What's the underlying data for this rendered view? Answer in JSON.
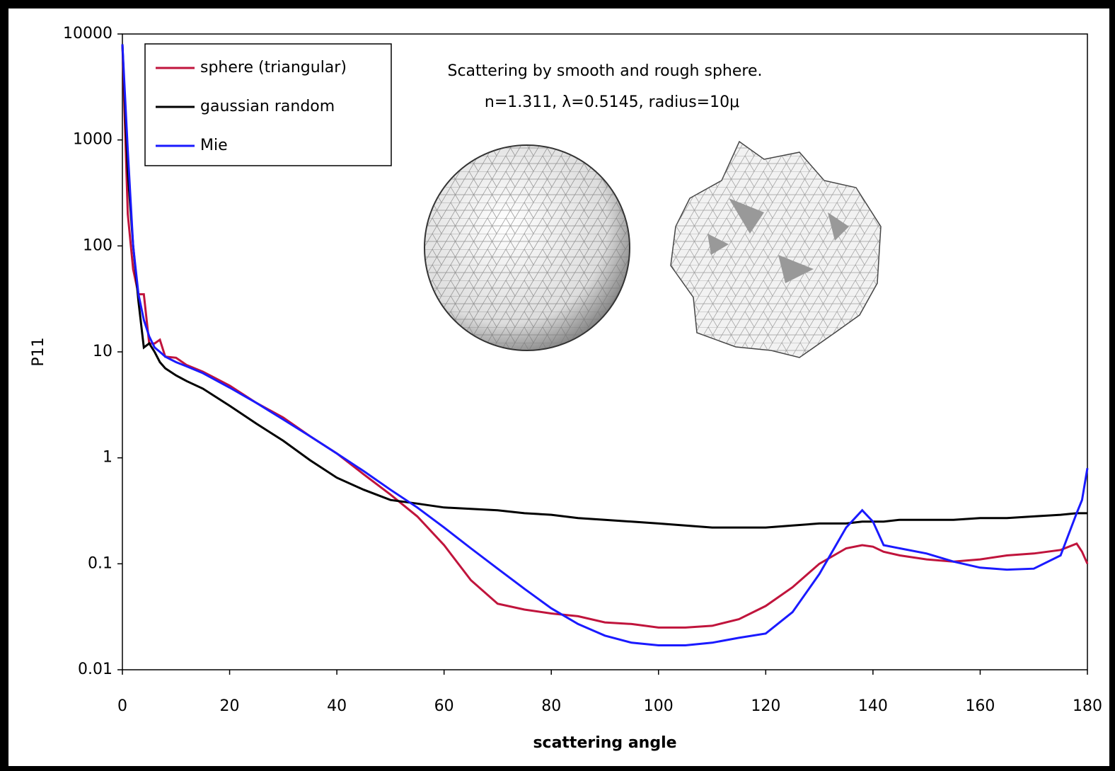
{
  "chart_data": {
    "type": "line",
    "title": "Scattering by smooth and rough sphere.",
    "subtitle": "n=1.311, λ=0.5145, radius=10μ",
    "x_label": "scattering angle",
    "y_label": "P11",
    "yscale": "log",
    "legend": "upper left",
    "xlim": [
      0,
      180
    ],
    "xticks": [
      0,
      20,
      40,
      60,
      80,
      100,
      120,
      140,
      160,
      180
    ],
    "ylim": [
      0.01,
      10000
    ],
    "yticks": [
      0.01,
      0.1,
      1,
      10,
      100,
      1000,
      10000
    ],
    "x": [
      0,
      1,
      2,
      3,
      4,
      5,
      6,
      7,
      8,
      10,
      12,
      15,
      20,
      25,
      30,
      35,
      40,
      45,
      50,
      55,
      60,
      65,
      70,
      75,
      80,
      85,
      90,
      95,
      100,
      105,
      110,
      115,
      120,
      125,
      130,
      135,
      138,
      140,
      142,
      145,
      150,
      155,
      160,
      165,
      170,
      175,
      178,
      179,
      180
    ],
    "series": [
      {
        "name": "sphere (triangular)",
        "color": "#c0143c",
        "values": [
          8000,
          200,
          60,
          35,
          35,
          12,
          12,
          13,
          9,
          8.8,
          7.5,
          6.5,
          4.8,
          3.3,
          2.4,
          1.6,
          1.1,
          0.7,
          0.45,
          0.28,
          0.15,
          0.07,
          0.042,
          0.037,
          0.034,
          0.032,
          0.028,
          0.027,
          0.025,
          0.025,
          0.026,
          0.03,
          0.04,
          0.06,
          0.1,
          0.14,
          0.15,
          0.145,
          0.13,
          0.12,
          0.11,
          0.105,
          0.11,
          0.12,
          0.125,
          0.135,
          0.155,
          0.13,
          0.1
        ]
      },
      {
        "name": "gaussian random",
        "color": "#000000",
        "values": [
          8000,
          500,
          100,
          30,
          11,
          12,
          10,
          8,
          7,
          6,
          5.3,
          4.5,
          3.1,
          2.1,
          1.45,
          0.95,
          0.65,
          0.5,
          0.4,
          0.37,
          0.34,
          0.33,
          0.32,
          0.3,
          0.29,
          0.27,
          0.26,
          0.25,
          0.24,
          0.23,
          0.22,
          0.22,
          0.22,
          0.23,
          0.24,
          0.24,
          0.25,
          0.25,
          0.25,
          0.26,
          0.26,
          0.26,
          0.27,
          0.27,
          0.28,
          0.29,
          0.3,
          0.3,
          0.3
        ]
      },
      {
        "name": "Mie",
        "color": "#1a1aff",
        "values": [
          8000,
          800,
          100,
          35,
          20,
          14,
          11,
          10,
          9,
          8,
          7.3,
          6.3,
          4.6,
          3.3,
          2.3,
          1.6,
          1.1,
          0.75,
          0.5,
          0.34,
          0.22,
          0.14,
          0.09,
          0.058,
          0.038,
          0.027,
          0.021,
          0.018,
          0.017,
          0.017,
          0.018,
          0.02,
          0.022,
          0.035,
          0.08,
          0.22,
          0.32,
          0.25,
          0.15,
          0.14,
          0.125,
          0.105,
          0.092,
          0.088,
          0.09,
          0.12,
          0.3,
          0.4,
          0.8
        ]
      }
    ]
  }
}
